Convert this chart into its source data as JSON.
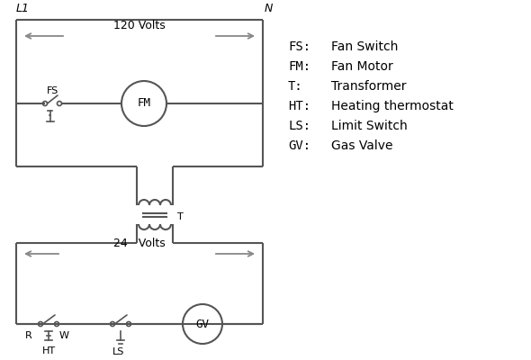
{
  "bg_color": "#ffffff",
  "line_color": "#555555",
  "arrow_color": "#888888",
  "text_color": "#000000",
  "legend": [
    [
      "FS:",
      "Fan Switch"
    ],
    [
      "FM:",
      "Fan Motor"
    ],
    [
      "T:",
      "Transformer"
    ],
    [
      "HT:",
      "Heating thermostat"
    ],
    [
      "LS:",
      "Limit Switch"
    ],
    [
      "GV:",
      "Gas Valve"
    ]
  ],
  "volts_120_label": "120 Volts",
  "volts_24_label": "24   Volts",
  "L1_label": "L1",
  "N_label": "N",
  "R_label": "R",
  "W_label": "W",
  "HT_label": "HT",
  "LS_label": "LS",
  "FS_label": "FS",
  "FM_label": "FM",
  "T_label": "T",
  "GV_label": "GV",
  "figsize": [
    5.9,
    4.0
  ],
  "dpi": 100
}
